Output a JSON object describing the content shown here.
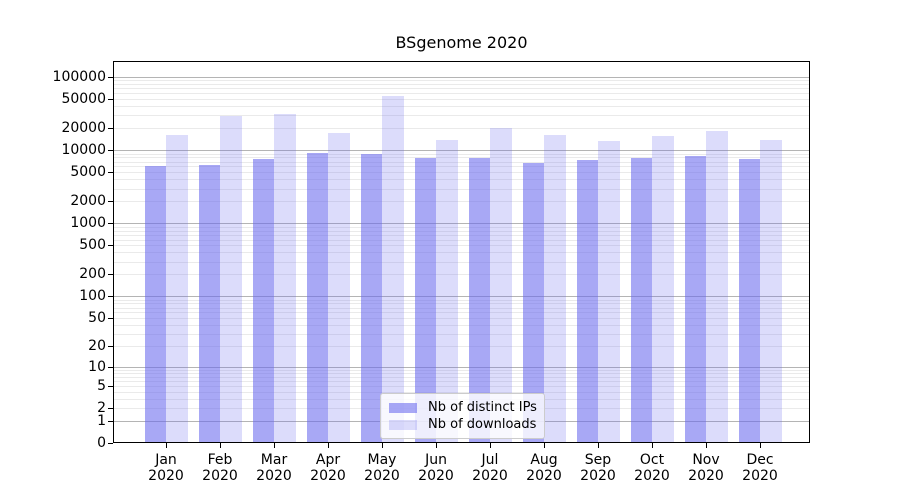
{
  "title": "BSgenome 2020",
  "chart_data": {
    "type": "bar",
    "title": "BSgenome 2020",
    "categories": [
      "Jan 2020",
      "Feb 2020",
      "Mar 2020",
      "Apr 2020",
      "May 2020",
      "Jun 2020",
      "Jul 2020",
      "Aug 2020",
      "Sep 2020",
      "Oct 2020",
      "Nov 2020",
      "Dec 2020"
    ],
    "series": [
      {
        "name": "Nb of distinct IPs",
        "color": "rgba(102,102,238,0.57)",
        "values": [
          6000,
          6300,
          7700,
          9200,
          9000,
          7800,
          7900,
          6800,
          7400,
          7900,
          8400,
          7700
        ]
      },
      {
        "name": "Nb of downloads",
        "color": "rgba(102,102,238,0.23)",
        "values": [
          16000,
          29000,
          31500,
          17000,
          55000,
          14000,
          20000,
          16000,
          13500,
          15500,
          18500,
          14000
        ]
      }
    ],
    "yscale": "log10(1+x)",
    "yticks": [
      0,
      1,
      2,
      5,
      10,
      20,
      50,
      100,
      200,
      500,
      1000,
      2000,
      5000,
      10000,
      20000,
      50000,
      100000
    ],
    "ylim": [
      0,
      165000
    ],
    "xlabel": "",
    "ylabel": "",
    "grid": "on",
    "legend_position": "lower center inside",
    "colors": {
      "grid_major": "#b4b4b4",
      "grid_minor": "#eaeaea",
      "axis": "#000000",
      "bar_dark_composited": "#a8a8f2",
      "bar_light_composited": "#dcdcf7"
    }
  }
}
